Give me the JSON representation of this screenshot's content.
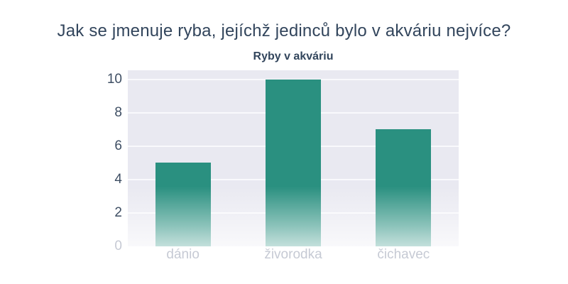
{
  "question": "Jak se jmenuje ryba, jejíchž jedinců bylo v akváriu nejvíce?",
  "chart_data": {
    "type": "bar",
    "title": "Ryby v akváriu",
    "categories": [
      "dánio",
      "živorodka",
      "čichavec"
    ],
    "values": [
      5,
      10,
      7
    ],
    "ylim": [
      0,
      10
    ],
    "yticks": [
      0,
      2,
      4,
      6,
      8,
      10
    ],
    "grid": true,
    "legend_position": "none",
    "xlabel": "",
    "ylabel": "",
    "colors": {
      "bar": "#2a9080",
      "plot_background": "#e9e9f1",
      "gridline": "#f9f9fc",
      "title_text": "#32455c",
      "question_text": "#32455c",
      "y_tick_text": "#3e4e63",
      "x_tick_text": "#c6cad4",
      "faded_tick_text": "#c6cad4",
      "page_background": "#ffffff"
    }
  }
}
